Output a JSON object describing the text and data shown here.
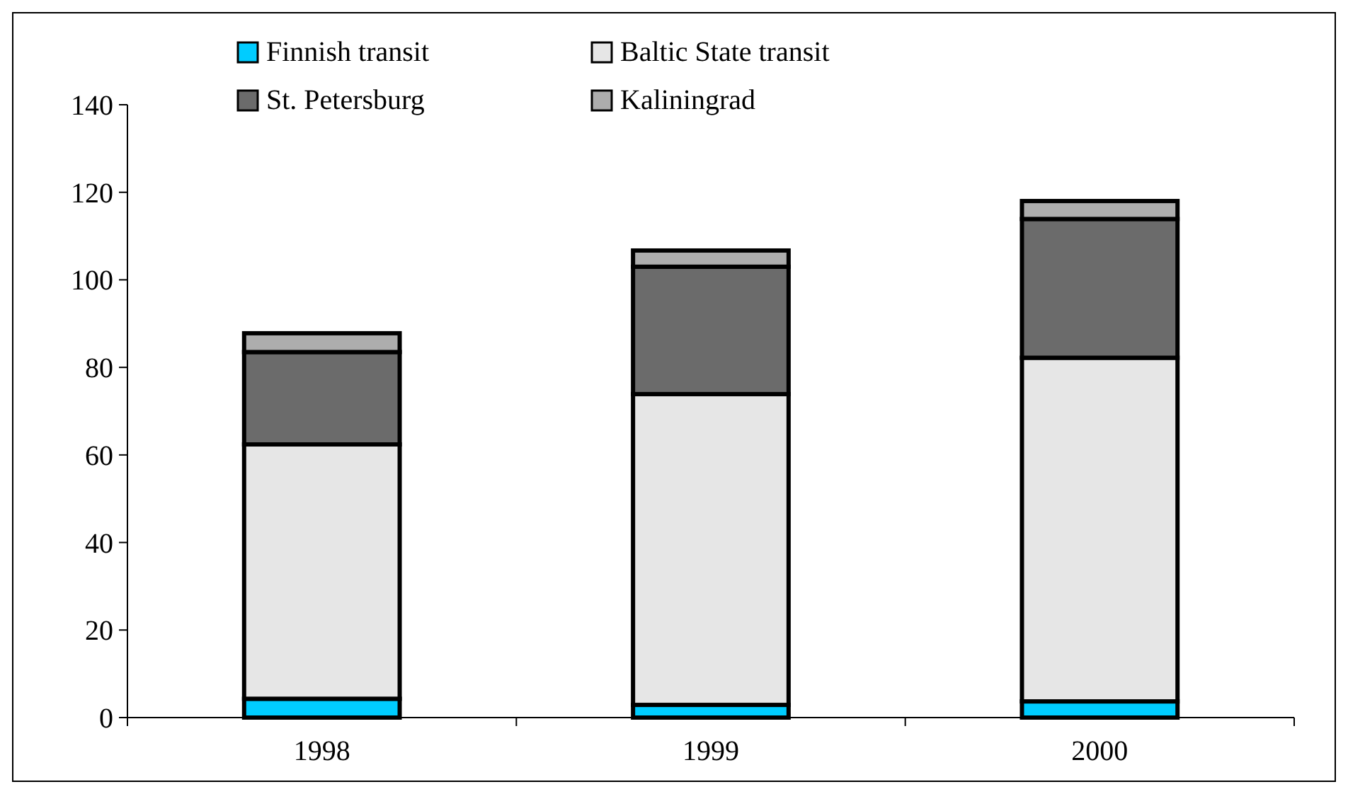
{
  "chart_data": {
    "type": "bar",
    "stacked": true,
    "categories": [
      "1998",
      "1999",
      "2000"
    ],
    "series": [
      {
        "name": "Finnish transit",
        "color": "#00ccff",
        "values": [
          4.3,
          2.9,
          3.7
        ]
      },
      {
        "name": "Baltic State transit",
        "color": "#e6e6e6",
        "values": [
          58.1,
          71,
          78.5
        ]
      },
      {
        "name": "St. Petersburg",
        "color": "#6b6b6b",
        "values": [
          21.1,
          29.1,
          31.7
        ]
      },
      {
        "name": "Kaliningrad",
        "color": "#adadad",
        "values": [
          4.3,
          3.7,
          4.1
        ]
      }
    ],
    "ylim": [
      0,
      140
    ],
    "yticks": [
      0,
      20,
      40,
      60,
      80,
      100,
      120,
      140
    ],
    "grid": false,
    "legend": "top left"
  }
}
